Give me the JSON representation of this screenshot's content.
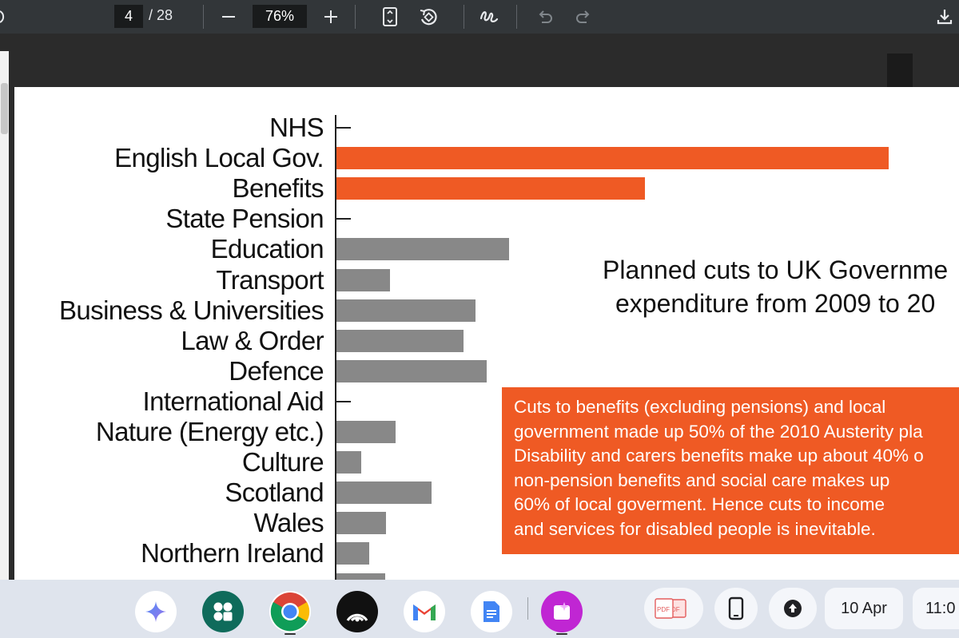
{
  "toolbar": {
    "page_current": "4",
    "page_total": "/ 28",
    "zoom": "76%",
    "icons": [
      "zoom-out-icon",
      "zoom-in-icon",
      "fit-page-icon",
      "rotate-icon",
      "annotate-icon",
      "undo-icon",
      "redo-icon",
      "download-icon"
    ]
  },
  "page": {
    "title_line1": "Planned cuts to UK Governme",
    "title_line2": "expenditure from 2009 to 20",
    "note": "Cuts to benefits (excluding pensions) and local\ngovernment made up 50% of the 2010 Austerity pla\nDisability and carers benefits make up about 40% o\nnon-pension benefits and social care makes up\n60% of local goverment. Hence cuts to income\nand services for disabled people is inevitable."
  },
  "chart_data": {
    "type": "bar",
    "orientation": "horizontal",
    "categories": [
      "NHS",
      "English Local Gov.",
      "Benefits",
      "State Pension",
      "Education",
      "Transport",
      "Business & Universities",
      "Law & Order",
      "Defence",
      "International Aid",
      "Nature (Energy etc.)",
      "Culture",
      "Scotland",
      "Wales",
      "Northern Ireland"
    ],
    "values": [
      0,
      100,
      55.9,
      0,
      31.4,
      9.8,
      25.3,
      23.1,
      27.3,
      0,
      10.8,
      4.6,
      17.4,
      9.1,
      6.1
    ],
    "colors": [
      "#888888",
      "#ef5a24",
      "#ef5a24",
      "#888888",
      "#888888",
      "#888888",
      "#888888",
      "#888888",
      "#888888",
      "#888888",
      "#888888",
      "#888888",
      "#888888",
      "#888888",
      "#888888"
    ],
    "xlim": [
      0,
      100
    ],
    "highlight_color": "#ef5a24",
    "default_color": "#888888"
  },
  "shelf": {
    "apps": [
      "gemini-icon",
      "app-launcher-icon",
      "chrome-icon",
      "podcast-icon",
      "gmail-icon",
      "docs-icon",
      "canvas-icon"
    ],
    "date": "10 Apr",
    "time": "11:0"
  }
}
